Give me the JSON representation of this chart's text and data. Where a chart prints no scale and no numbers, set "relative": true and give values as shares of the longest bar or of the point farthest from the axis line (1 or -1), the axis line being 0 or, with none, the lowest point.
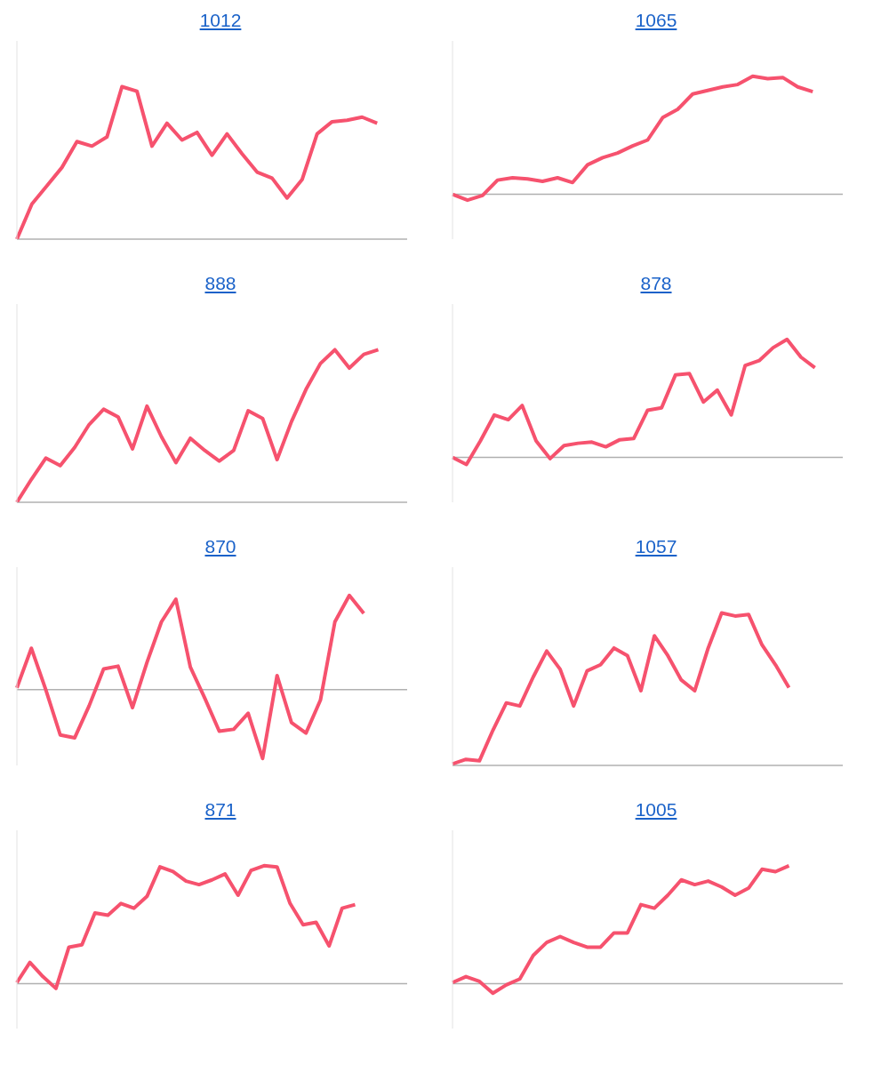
{
  "chart_data": [
    {
      "type": "line",
      "title": "1012",
      "relative": true,
      "tick_labels": false,
      "color": "#f6526e",
      "categories": [
        null,
        null,
        null,
        null,
        null,
        null,
        null,
        null,
        null,
        null,
        null,
        null,
        null,
        null,
        null,
        null,
        null,
        null,
        null,
        null,
        null,
        null,
        null,
        null,
        null,
        null,
        null
      ],
      "values": [
        0,
        0.23,
        0.35,
        0.47,
        0.64,
        0.61,
        0.67,
        1,
        0.97,
        0.61,
        0.76,
        0.65,
        0.7,
        0.55,
        0.69,
        0.56,
        0.44,
        0.4,
        0.27,
        0.39,
        0.69,
        0.77,
        0.78,
        0.8,
        0.76,
        null,
        null
      ]
    },
    {
      "type": "line",
      "title": "1065",
      "relative": true,
      "tick_labels": false,
      "color": "#f6526e",
      "categories": [
        null,
        null,
        null,
        null,
        null,
        null,
        null,
        null,
        null,
        null,
        null,
        null,
        null,
        null,
        null,
        null,
        null,
        null,
        null,
        null,
        null,
        null,
        null,
        null,
        null,
        null,
        null
      ],
      "values": [
        0,
        -0.05,
        -0.01,
        0.12,
        0.14,
        0.13,
        0.11,
        0.14,
        0.1,
        0.25,
        0.31,
        0.35,
        0.41,
        0.46,
        0.65,
        0.72,
        0.85,
        0.88,
        0.91,
        0.93,
        1,
        0.98,
        0.99,
        0.91,
        0.87,
        null,
        null
      ]
    },
    {
      "type": "line",
      "title": "888",
      "relative": true,
      "tick_labels": false,
      "color": "#f6526e",
      "categories": [
        null,
        null,
        null,
        null,
        null,
        null,
        null,
        null,
        null,
        null,
        null,
        null,
        null,
        null,
        null,
        null,
        null,
        null,
        null,
        null,
        null,
        null,
        null,
        null,
        null,
        null,
        null,
        null
      ],
      "values": [
        0,
        0.15,
        0.29,
        0.24,
        0.36,
        0.51,
        0.61,
        0.56,
        0.35,
        0.63,
        0.43,
        0.26,
        0.42,
        0.34,
        0.27,
        0.34,
        0.6,
        0.55,
        0.28,
        0.53,
        0.74,
        0.91,
        1,
        0.88,
        0.97,
        1,
        null,
        null
      ]
    },
    {
      "type": "line",
      "title": "878",
      "relative": true,
      "tick_labels": false,
      "color": "#f6526e",
      "categories": [
        null,
        null,
        null,
        null,
        null,
        null,
        null,
        null,
        null,
        null,
        null,
        null,
        null,
        null,
        null,
        null,
        null,
        null,
        null,
        null,
        null,
        null,
        null,
        null,
        null,
        null,
        null,
        null,
        null
      ],
      "values": [
        0,
        -0.06,
        0.14,
        0.36,
        0.32,
        0.44,
        0.14,
        -0.01,
        0.1,
        0.12,
        0.13,
        0.09,
        0.15,
        0.16,
        0.4,
        0.42,
        0.7,
        0.71,
        0.47,
        0.57,
        0.36,
        0.78,
        0.82,
        0.93,
        1,
        0.85,
        0.76,
        null,
        null
      ]
    },
    {
      "type": "line",
      "title": "870",
      "relative": true,
      "tick_labels": false,
      "color": "#f6526e",
      "categories": [
        null,
        null,
        null,
        null,
        null,
        null,
        null,
        null,
        null,
        null,
        null,
        null,
        null,
        null,
        null,
        null,
        null,
        null,
        null,
        null,
        null,
        null,
        null,
        null,
        null,
        null,
        null,
        null
      ],
      "values": [
        0.02,
        0.44,
        0,
        -0.48,
        -0.51,
        -0.17,
        0.22,
        0.25,
        -0.19,
        0.29,
        0.72,
        0.96,
        0.24,
        -0.09,
        -0.44,
        -0.42,
        -0.25,
        -0.73,
        0.15,
        -0.35,
        -0.46,
        -0.11,
        0.72,
        1,
        0.81,
        null,
        null,
        null
      ]
    },
    {
      "type": "line",
      "title": "1057",
      "relative": true,
      "tick_labels": false,
      "color": "#f6526e",
      "categories": [
        null,
        null,
        null,
        null,
        null,
        null,
        null,
        null,
        null,
        null,
        null,
        null,
        null,
        null,
        null,
        null,
        null,
        null,
        null,
        null,
        null,
        null,
        null,
        null,
        null,
        null,
        null,
        null,
        null,
        null
      ],
      "values": [
        0.01,
        0.04,
        0.03,
        0.23,
        0.41,
        0.39,
        0.58,
        0.75,
        0.63,
        0.39,
        0.62,
        0.66,
        0.77,
        0.72,
        0.49,
        0.85,
        0.72,
        0.56,
        0.49,
        0.77,
        1,
        0.98,
        0.99,
        0.79,
        0.66,
        0.51,
        null,
        null,
        null,
        null
      ]
    },
    {
      "type": "line",
      "title": "871",
      "relative": true,
      "tick_labels": false,
      "color": "#f6526e",
      "categories": [
        null,
        null,
        null,
        null,
        null,
        null,
        null,
        null,
        null,
        null,
        null,
        null,
        null,
        null,
        null,
        null,
        null,
        null,
        null,
        null,
        null,
        null,
        null,
        null,
        null,
        null,
        null,
        null,
        null,
        null,
        null
      ],
      "values": [
        0.01,
        0.18,
        0.06,
        -0.04,
        0.31,
        0.33,
        0.6,
        0.58,
        0.68,
        0.64,
        0.74,
        0.99,
        0.95,
        0.87,
        0.84,
        0.88,
        0.93,
        0.75,
        0.96,
        1,
        0.99,
        0.68,
        0.5,
        0.52,
        0.32,
        0.64,
        0.67,
        null,
        null,
        null,
        null
      ]
    },
    {
      "type": "line",
      "title": "1005",
      "relative": true,
      "tick_labels": false,
      "color": "#f6526e",
      "categories": [
        null,
        null,
        null,
        null,
        null,
        null,
        null,
        null,
        null,
        null,
        null,
        null,
        null,
        null,
        null,
        null,
        null,
        null,
        null,
        null,
        null,
        null,
        null,
        null,
        null,
        null,
        null,
        null,
        null,
        null
      ],
      "values": [
        0.01,
        0.06,
        0.02,
        -0.08,
        -0.01,
        0.04,
        0.24,
        0.35,
        0.4,
        0.35,
        0.31,
        0.31,
        0.43,
        0.43,
        0.67,
        0.64,
        0.75,
        0.88,
        0.84,
        0.87,
        0.82,
        0.75,
        0.81,
        0.97,
        0.95,
        1,
        null,
        null,
        null,
        null
      ]
    }
  ]
}
